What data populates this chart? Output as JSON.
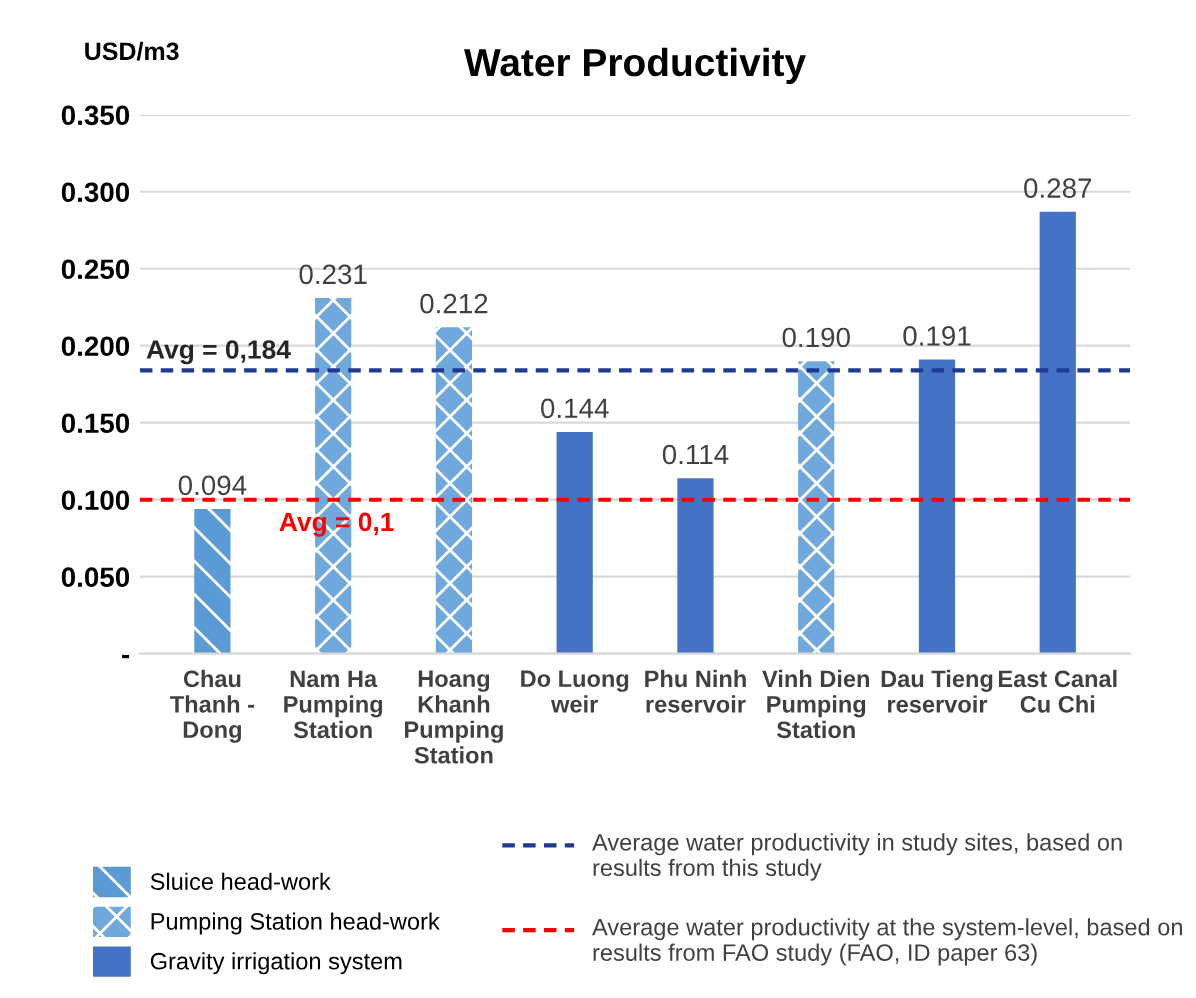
{
  "chart_data": {
    "type": "bar",
    "title": "Water Productivity",
    "ylabel": "USD/m3",
    "categories": [
      "Chau Thanh - Dong",
      "Nam Ha Pumping Station",
      "Hoang Khanh Pumping Station",
      "Do Luong weir",
      "Phu Ninh reservoir",
      "Vinh Dien Pumping Station",
      "Dau Tieng reservoir",
      "East Canal Cu Chi"
    ],
    "series": [
      {
        "name": "Sluice head-work",
        "color": "#5b9bd5",
        "values": [
          0.094,
          null,
          null,
          null,
          null,
          null,
          null,
          null
        ],
        "value_labels": [
          "0.094",
          null,
          null,
          null,
          null,
          null,
          null,
          null
        ]
      },
      {
        "name": "Pumping Station head-work",
        "color": "#6fa8dc",
        "values": [
          null,
          0.231,
          0.212,
          null,
          null,
          0.19,
          null,
          null
        ],
        "value_labels": [
          null,
          "0.231",
          "0.212",
          null,
          null,
          "0.190",
          null,
          null
        ]
      },
      {
        "name": "Gravity irrigation system",
        "color": "#4472c4",
        "values": [
          null,
          null,
          null,
          0.144,
          0.114,
          null,
          0.191,
          0.287
        ],
        "value_labels": [
          null,
          null,
          null,
          "0.144",
          "0.114",
          null,
          "0.191",
          "0.287"
        ]
      }
    ],
    "ylim": [
      0,
      0.35
    ],
    "yticks": [
      {
        "value": 0,
        "label": "-"
      },
      {
        "value": 0.05,
        "label": "0.050"
      },
      {
        "value": 0.1,
        "label": "0.100"
      },
      {
        "value": 0.15,
        "label": "0.150"
      },
      {
        "value": 0.2,
        "label": "0.200"
      },
      {
        "value": 0.25,
        "label": "0.250"
      },
      {
        "value": 0.3,
        "label": "0.300"
      },
      {
        "value": 0.35,
        "label": "0.350"
      }
    ],
    "ref_lines": [
      {
        "axis": "y",
        "value": 0.184,
        "label": "Avg = 0,184",
        "color": "#1f3a93",
        "line_style": "dashed"
      },
      {
        "axis": "y",
        "value": 0.1,
        "label": "Avg = 0,1",
        "color": "#ff0000",
        "line_style": "dashed"
      }
    ],
    "annotations": [
      "Average water productivity in study sites, based on results from this study",
      "Average water productivity at the system-level, based on results from FAO study (FAO, ID paper 63)"
    ],
    "grid": "y",
    "legend": "bottom"
  }
}
